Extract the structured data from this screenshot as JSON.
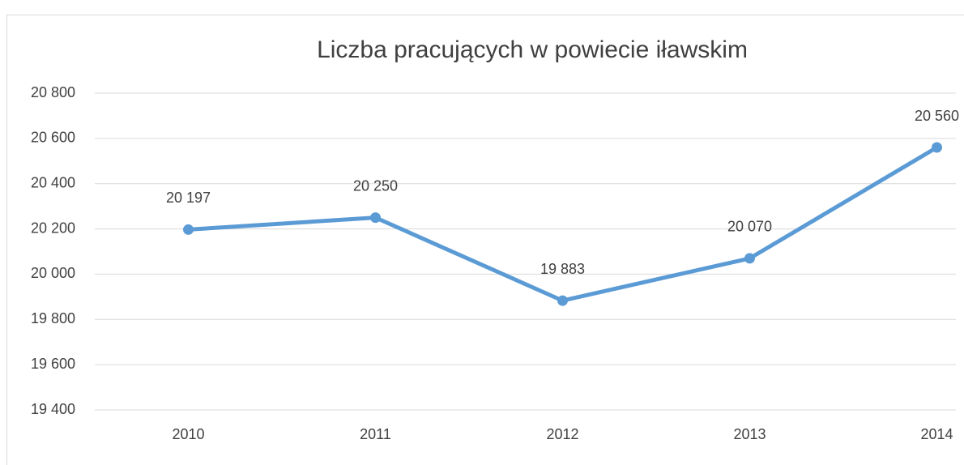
{
  "chart_data": {
    "type": "line",
    "title": "Liczba pracujących w powiecie iławskim",
    "categories": [
      "2010",
      "2011",
      "2012",
      "2013",
      "2014"
    ],
    "values": [
      20197,
      20250,
      19883,
      20070,
      20560
    ],
    "value_labels": [
      "20 197",
      "20 250",
      "19 883",
      "20 070",
      "20 560"
    ],
    "color": "#5b9bd5",
    "ylim": [
      19400,
      20800
    ],
    "yticks": [
      {
        "value": 19400,
        "label": "19 400"
      },
      {
        "value": 19600,
        "label": "19 600"
      },
      {
        "value": 19800,
        "label": "19 800"
      },
      {
        "value": 20000,
        "label": "20 000"
      },
      {
        "value": 20200,
        "label": "20 200"
      },
      {
        "value": 20400,
        "label": "20 400"
      },
      {
        "value": 20600,
        "label": "20 600"
      },
      {
        "value": 20800,
        "label": "20 800"
      }
    ],
    "grid": true
  }
}
